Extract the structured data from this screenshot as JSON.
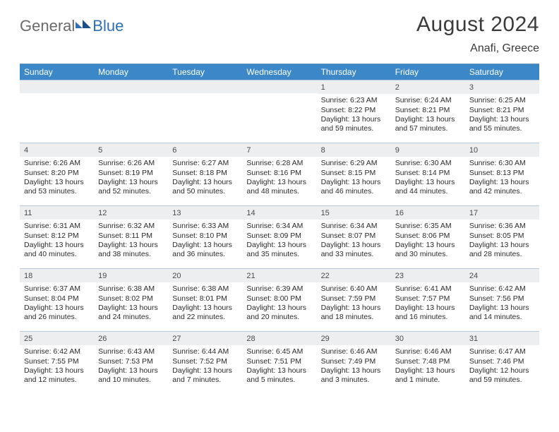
{
  "logo": {
    "part1": "General",
    "part2": "Blue"
  },
  "title": "August 2024",
  "location": "Anafi, Greece",
  "colors": {
    "header_bg": "#3b87c8",
    "header_text": "#ffffff",
    "daynum_bg": "#eceeef",
    "row_border": "#b7c8da",
    "text": "#2a2a2a",
    "logo_gray": "#6a6a6a",
    "logo_blue": "#2f6fb3"
  },
  "daysOfWeek": [
    "Sunday",
    "Monday",
    "Tuesday",
    "Wednesday",
    "Thursday",
    "Friday",
    "Saturday"
  ],
  "weeks": [
    [
      {
        "n": "",
        "sr": "",
        "ss": "",
        "dl": ""
      },
      {
        "n": "",
        "sr": "",
        "ss": "",
        "dl": ""
      },
      {
        "n": "",
        "sr": "",
        "ss": "",
        "dl": ""
      },
      {
        "n": "",
        "sr": "",
        "ss": "",
        "dl": ""
      },
      {
        "n": "1",
        "sr": "Sunrise: 6:23 AM",
        "ss": "Sunset: 8:22 PM",
        "dl": "Daylight: 13 hours and 59 minutes."
      },
      {
        "n": "2",
        "sr": "Sunrise: 6:24 AM",
        "ss": "Sunset: 8:21 PM",
        "dl": "Daylight: 13 hours and 57 minutes."
      },
      {
        "n": "3",
        "sr": "Sunrise: 6:25 AM",
        "ss": "Sunset: 8:21 PM",
        "dl": "Daylight: 13 hours and 55 minutes."
      }
    ],
    [
      {
        "n": "4",
        "sr": "Sunrise: 6:26 AM",
        "ss": "Sunset: 8:20 PM",
        "dl": "Daylight: 13 hours and 53 minutes."
      },
      {
        "n": "5",
        "sr": "Sunrise: 6:26 AM",
        "ss": "Sunset: 8:19 PM",
        "dl": "Daylight: 13 hours and 52 minutes."
      },
      {
        "n": "6",
        "sr": "Sunrise: 6:27 AM",
        "ss": "Sunset: 8:18 PM",
        "dl": "Daylight: 13 hours and 50 minutes."
      },
      {
        "n": "7",
        "sr": "Sunrise: 6:28 AM",
        "ss": "Sunset: 8:16 PM",
        "dl": "Daylight: 13 hours and 48 minutes."
      },
      {
        "n": "8",
        "sr": "Sunrise: 6:29 AM",
        "ss": "Sunset: 8:15 PM",
        "dl": "Daylight: 13 hours and 46 minutes."
      },
      {
        "n": "9",
        "sr": "Sunrise: 6:30 AM",
        "ss": "Sunset: 8:14 PM",
        "dl": "Daylight: 13 hours and 44 minutes."
      },
      {
        "n": "10",
        "sr": "Sunrise: 6:30 AM",
        "ss": "Sunset: 8:13 PM",
        "dl": "Daylight: 13 hours and 42 minutes."
      }
    ],
    [
      {
        "n": "11",
        "sr": "Sunrise: 6:31 AM",
        "ss": "Sunset: 8:12 PM",
        "dl": "Daylight: 13 hours and 40 minutes."
      },
      {
        "n": "12",
        "sr": "Sunrise: 6:32 AM",
        "ss": "Sunset: 8:11 PM",
        "dl": "Daylight: 13 hours and 38 minutes."
      },
      {
        "n": "13",
        "sr": "Sunrise: 6:33 AM",
        "ss": "Sunset: 8:10 PM",
        "dl": "Daylight: 13 hours and 36 minutes."
      },
      {
        "n": "14",
        "sr": "Sunrise: 6:34 AM",
        "ss": "Sunset: 8:09 PM",
        "dl": "Daylight: 13 hours and 35 minutes."
      },
      {
        "n": "15",
        "sr": "Sunrise: 6:34 AM",
        "ss": "Sunset: 8:07 PM",
        "dl": "Daylight: 13 hours and 33 minutes."
      },
      {
        "n": "16",
        "sr": "Sunrise: 6:35 AM",
        "ss": "Sunset: 8:06 PM",
        "dl": "Daylight: 13 hours and 30 minutes."
      },
      {
        "n": "17",
        "sr": "Sunrise: 6:36 AM",
        "ss": "Sunset: 8:05 PM",
        "dl": "Daylight: 13 hours and 28 minutes."
      }
    ],
    [
      {
        "n": "18",
        "sr": "Sunrise: 6:37 AM",
        "ss": "Sunset: 8:04 PM",
        "dl": "Daylight: 13 hours and 26 minutes."
      },
      {
        "n": "19",
        "sr": "Sunrise: 6:38 AM",
        "ss": "Sunset: 8:02 PM",
        "dl": "Daylight: 13 hours and 24 minutes."
      },
      {
        "n": "20",
        "sr": "Sunrise: 6:38 AM",
        "ss": "Sunset: 8:01 PM",
        "dl": "Daylight: 13 hours and 22 minutes."
      },
      {
        "n": "21",
        "sr": "Sunrise: 6:39 AM",
        "ss": "Sunset: 8:00 PM",
        "dl": "Daylight: 13 hours and 20 minutes."
      },
      {
        "n": "22",
        "sr": "Sunrise: 6:40 AM",
        "ss": "Sunset: 7:59 PM",
        "dl": "Daylight: 13 hours and 18 minutes."
      },
      {
        "n": "23",
        "sr": "Sunrise: 6:41 AM",
        "ss": "Sunset: 7:57 PM",
        "dl": "Daylight: 13 hours and 16 minutes."
      },
      {
        "n": "24",
        "sr": "Sunrise: 6:42 AM",
        "ss": "Sunset: 7:56 PM",
        "dl": "Daylight: 13 hours and 14 minutes."
      }
    ],
    [
      {
        "n": "25",
        "sr": "Sunrise: 6:42 AM",
        "ss": "Sunset: 7:55 PM",
        "dl": "Daylight: 13 hours and 12 minutes."
      },
      {
        "n": "26",
        "sr": "Sunrise: 6:43 AM",
        "ss": "Sunset: 7:53 PM",
        "dl": "Daylight: 13 hours and 10 minutes."
      },
      {
        "n": "27",
        "sr": "Sunrise: 6:44 AM",
        "ss": "Sunset: 7:52 PM",
        "dl": "Daylight: 13 hours and 7 minutes."
      },
      {
        "n": "28",
        "sr": "Sunrise: 6:45 AM",
        "ss": "Sunset: 7:51 PM",
        "dl": "Daylight: 13 hours and 5 minutes."
      },
      {
        "n": "29",
        "sr": "Sunrise: 6:46 AM",
        "ss": "Sunset: 7:49 PM",
        "dl": "Daylight: 13 hours and 3 minutes."
      },
      {
        "n": "30",
        "sr": "Sunrise: 6:46 AM",
        "ss": "Sunset: 7:48 PM",
        "dl": "Daylight: 13 hours and 1 minute."
      },
      {
        "n": "31",
        "sr": "Sunrise: 6:47 AM",
        "ss": "Sunset: 7:46 PM",
        "dl": "Daylight: 12 hours and 59 minutes."
      }
    ]
  ]
}
